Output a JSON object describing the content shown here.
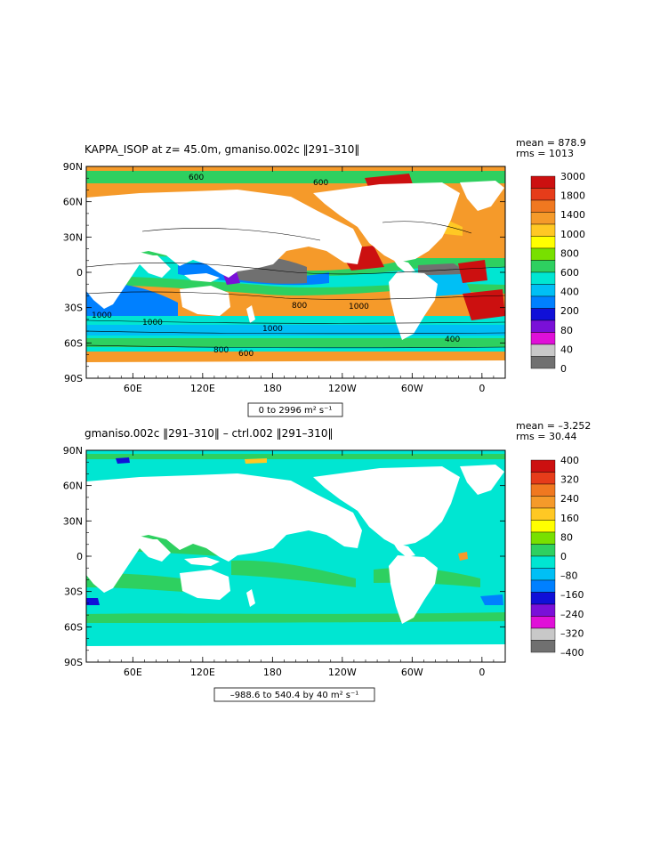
{
  "chart_data": [
    {
      "type": "heatmap",
      "title": "KAPPA_ISOP at z=  45.0m, gmaniso.002c ‖291–310‖",
      "stats": {
        "mean": "mean = 878.9",
        "rms": "rms = 1013"
      },
      "range_label": "0 to 2996 m² s⁻¹",
      "x_ticks": [
        "60E",
        "120E",
        "180",
        "120W",
        "60W",
        "0"
      ],
      "y_ticks": [
        "90N",
        "60N",
        "30N",
        "0",
        "30S",
        "60S",
        "90S"
      ],
      "colorbar": {
        "labels": [
          "3000",
          "1800",
          "1400",
          "1000",
          "800",
          "600",
          "400",
          "200",
          "80",
          "40",
          "0"
        ],
        "colors": [
          "#cc1010",
          "#e63c1a",
          "#f07820",
          "#f59a2a",
          "#ffc824",
          "#ffff00",
          "#78e000",
          "#2ed060",
          "#00e6d2",
          "#00bff5",
          "#0080ff",
          "#1010d8",
          "#7a10d8",
          "#e010d8",
          "#c8c8c8",
          "#707070"
        ]
      },
      "contour_labels": [
        "600",
        "600",
        "1000",
        "1000",
        "1000",
        "1000",
        "400",
        "800",
        "600",
        "800"
      ]
    },
    {
      "type": "heatmap",
      "title": "gmaniso.002c ‖291–310‖ – ctrl.002 ‖291–310‖",
      "stats": {
        "mean": "mean = –3.252",
        "rms": "rms = 30.44"
      },
      "range_label": "–988.6 to 540.4 by 40 m² s⁻¹",
      "x_ticks": [
        "60E",
        "120E",
        "180",
        "120W",
        "60W",
        "0"
      ],
      "y_ticks": [
        "90N",
        "60N",
        "30N",
        "0",
        "30S",
        "60S",
        "90S"
      ],
      "colorbar": {
        "labels": [
          "400",
          "320",
          "240",
          "160",
          "80",
          "0",
          "–80",
          "–160",
          "–240",
          "–320",
          "–400"
        ],
        "colors": [
          "#cc1010",
          "#e63c1a",
          "#f07820",
          "#f59a2a",
          "#ffc824",
          "#ffff00",
          "#78e000",
          "#2ed060",
          "#00e6d2",
          "#00bff5",
          "#0080ff",
          "#1010d8",
          "#7a10d8",
          "#e010d8",
          "#c8c8c8",
          "#707070"
        ]
      }
    }
  ]
}
